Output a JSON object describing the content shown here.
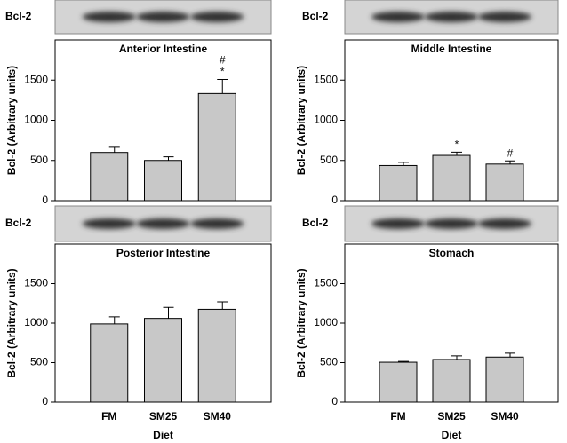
{
  "chart_data": [
    {
      "type": "bar",
      "title": "Anterior Intestine",
      "blot_label": "Bcl-2",
      "ylabel": "Bcl-2 (Arbitrary units)",
      "categories": [
        null,
        null,
        null
      ],
      "values": [
        600,
        500,
        1333
      ],
      "errors": [
        65,
        45,
        175
      ],
      "annotations": [
        [],
        [],
        [
          "#",
          "*"
        ]
      ],
      "color": "#c8c8c8",
      "ylim": [
        0,
        2000
      ],
      "yticks": [
        0,
        500,
        1000,
        1500
      ]
    },
    {
      "type": "bar",
      "title": "Middle Intestine",
      "blot_label": "Bcl-2",
      "ylabel": "Bcl-2 (Arbitrary units)",
      "categories": [
        null,
        null,
        null
      ],
      "values": [
        437,
        563,
        455
      ],
      "errors": [
        40,
        40,
        40
      ],
      "annotations": [
        [],
        [
          "*"
        ],
        [
          "#"
        ]
      ],
      "color": "#c8c8c8",
      "ylim": [
        0,
        2000
      ],
      "yticks": [
        0,
        500,
        1000,
        1500
      ]
    },
    {
      "type": "bar",
      "title": "Posterior Intestine",
      "blot_label": "Bcl-2",
      "ylabel": "Bcl-2 (Arbitrary units)",
      "categories": [
        "FM",
        "SM25",
        "SM40"
      ],
      "xlabel": "Diet",
      "values": [
        990,
        1060,
        1175
      ],
      "errors": [
        90,
        140,
        95
      ],
      "annotations": [
        [],
        [],
        []
      ],
      "color": "#c8c8c8",
      "ylim": [
        0,
        2000
      ],
      "yticks": [
        0,
        500,
        1000,
        1500
      ]
    },
    {
      "type": "bar",
      "title": "Stomach",
      "blot_label": "Bcl-2",
      "ylabel": "Bcl-2 (Arbitrary units)",
      "categories": [
        "FM",
        "SM25",
        "SM40"
      ],
      "xlabel": "Diet",
      "values": [
        505,
        540,
        570
      ],
      "errors": [
        10,
        45,
        50
      ],
      "annotations": [
        [],
        [],
        []
      ],
      "color": "#c8c8c8",
      "ylim": [
        0,
        2000
      ],
      "yticks": [
        0,
        500,
        1000,
        1500
      ]
    }
  ]
}
